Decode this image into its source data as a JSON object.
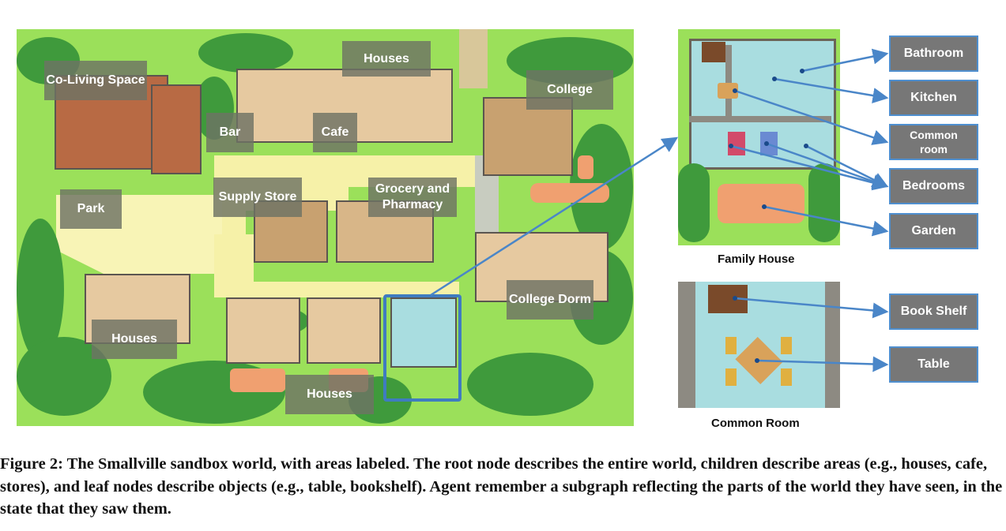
{
  "map": {
    "area_labels": {
      "coliving": "Co-Living Space",
      "houses_top": "Houses",
      "college": "College",
      "bar": "Bar",
      "cafe": "Cafe",
      "supply_store": "Supply Store",
      "grocery": "Grocery and Pharmacy",
      "park": "Park",
      "college_dorm": "College Dorm",
      "houses_left": "Houses",
      "houses_bottom": "Houses"
    }
  },
  "family_house": {
    "title": "Family House",
    "objects": [
      "Bathroom",
      "Kitchen",
      "Common room",
      "Bedrooms",
      "Garden"
    ]
  },
  "common_room": {
    "title": "Common Room",
    "objects": [
      "Book Shelf",
      "Table"
    ]
  },
  "caption": {
    "text": "Figure 2: The Smallville sandbox world, with areas labeled. The root node describes the entire world, children describe areas (e.g., houses, cafe, stores), and leaf nodes describe objects (e.g., table, bookshelf). Agent remember a subgraph reflecting the parts of the world they have seen, in the state that they saw them."
  },
  "colors": {
    "grass": "#9be05a",
    "path": "#f6f1a8",
    "tree": "#3f9a3c",
    "label_bg": "#6e7364",
    "object_box": "#777777",
    "arrow": "#4a86c8",
    "floor": "#a9dde0"
  }
}
